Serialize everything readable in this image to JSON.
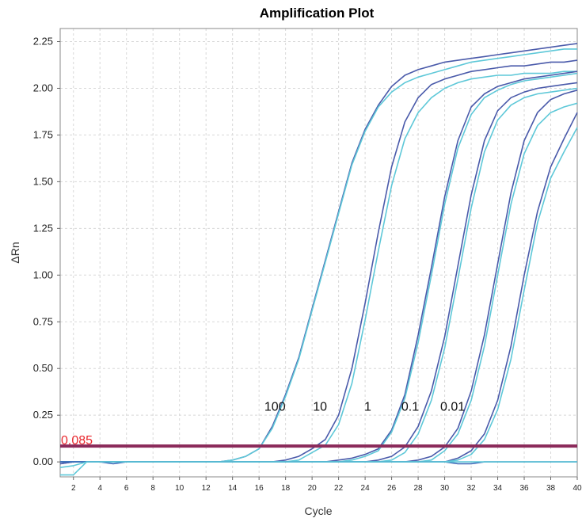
{
  "chart_data": {
    "type": "line",
    "title": "Amplification Plot",
    "xlabel": "Cycle",
    "ylabel": "ΔRn",
    "xlim": [
      1,
      40
    ],
    "ylim": [
      -0.08,
      2.32
    ],
    "xticks": [
      2,
      4,
      6,
      8,
      10,
      12,
      14,
      16,
      18,
      20,
      22,
      24,
      26,
      28,
      30,
      32,
      34,
      36,
      38,
      40
    ],
    "yticks": [
      0.0,
      0.25,
      0.5,
      0.75,
      1.0,
      1.25,
      1.5,
      1.75,
      2.0,
      2.25
    ],
    "ytick_labels": [
      "0.00",
      "0.25",
      "0.50",
      "0.75",
      "1.00",
      "1.25",
      "1.50",
      "1.75",
      "2.00",
      "2.25"
    ],
    "grid": true,
    "threshold": {
      "value": 0.085,
      "label": "0.085",
      "color": "#8b2a5a"
    },
    "colors": {
      "dark": "#4a5aaa",
      "light": "#5ec8d8",
      "baseline": "#3a68b8"
    },
    "annotations": [
      {
        "text": "100",
        "x": 17.2,
        "y": 0.3
      },
      {
        "text": "10",
        "x": 20.6,
        "y": 0.3
      },
      {
        "text": "1",
        "x": 24.2,
        "y": 0.3
      },
      {
        "text": "0.1",
        "x": 27.4,
        "y": 0.3
      },
      {
        "text": "0.01",
        "x": 30.6,
        "y": 0.3
      }
    ],
    "series": [
      {
        "color": "#4a5aaa",
        "values": [
          -0.01,
          0.0,
          0.0,
          0.0,
          0.0,
          0.0,
          0.0,
          0.0,
          0.0,
          0.0,
          0.0,
          0.0,
          0.0,
          0.01,
          0.03,
          0.07,
          0.19,
          0.36,
          0.56,
          0.82,
          1.08,
          1.34,
          1.6,
          1.78,
          1.91,
          2.01,
          2.07,
          2.1,
          2.12,
          2.14,
          2.15,
          2.16,
          2.17,
          2.18,
          2.19,
          2.2,
          2.21,
          2.22,
          2.23,
          2.24
        ]
      },
      {
        "color": "#5ec8d8",
        "values": [
          -0.07,
          -0.07,
          0.0,
          0.0,
          0.0,
          0.0,
          0.0,
          0.0,
          0.0,
          0.0,
          0.0,
          0.0,
          0.0,
          0.01,
          0.03,
          0.07,
          0.18,
          0.35,
          0.55,
          0.81,
          1.07,
          1.33,
          1.59,
          1.77,
          1.9,
          1.98,
          2.03,
          2.06,
          2.08,
          2.1,
          2.12,
          2.14,
          2.15,
          2.16,
          2.17,
          2.18,
          2.19,
          2.2,
          2.21,
          2.21
        ]
      },
      {
        "color": "#4a5aaa",
        "values": [
          -0.01,
          0.0,
          0.0,
          0.0,
          0.0,
          0.0,
          0.0,
          0.0,
          0.0,
          0.0,
          0.0,
          0.0,
          0.0,
          0.0,
          0.0,
          0.0,
          0.0,
          0.01,
          0.03,
          0.07,
          0.12,
          0.25,
          0.5,
          0.85,
          1.23,
          1.58,
          1.82,
          1.95,
          2.02,
          2.05,
          2.07,
          2.09,
          2.1,
          2.11,
          2.12,
          2.12,
          2.13,
          2.14,
          2.14,
          2.15
        ]
      },
      {
        "color": "#5ec8d8",
        "values": [
          0.0,
          0.0,
          0.0,
          0.0,
          0.0,
          0.0,
          0.0,
          0.0,
          0.0,
          0.0,
          0.0,
          0.0,
          0.0,
          0.0,
          0.0,
          0.0,
          0.0,
          0.0,
          0.01,
          0.05,
          0.09,
          0.2,
          0.42,
          0.76,
          1.13,
          1.48,
          1.73,
          1.87,
          1.95,
          2.0,
          2.03,
          2.05,
          2.06,
          2.07,
          2.07,
          2.08,
          2.08,
          2.08,
          2.09,
          2.09
        ]
      },
      {
        "color": "#4a5aaa",
        "values": [
          0.0,
          0.0,
          0.0,
          0.0,
          0.0,
          0.0,
          0.0,
          0.0,
          0.0,
          0.0,
          0.0,
          0.0,
          0.0,
          0.0,
          0.0,
          0.0,
          0.0,
          0.0,
          0.0,
          0.0,
          0.0,
          0.01,
          0.02,
          0.04,
          0.07,
          0.17,
          0.36,
          0.68,
          1.04,
          1.42,
          1.72,
          1.9,
          1.97,
          2.01,
          2.03,
          2.05,
          2.06,
          2.07,
          2.08,
          2.09
        ]
      },
      {
        "color": "#5ec8d8",
        "values": [
          0.0,
          0.0,
          0.0,
          0.0,
          0.0,
          0.0,
          0.0,
          0.0,
          0.0,
          0.0,
          0.0,
          0.0,
          0.0,
          0.0,
          0.0,
          0.0,
          0.0,
          0.0,
          0.0,
          0.0,
          0.0,
          0.0,
          0.01,
          0.03,
          0.06,
          0.16,
          0.34,
          0.64,
          1.0,
          1.38,
          1.68,
          1.86,
          1.95,
          1.99,
          2.02,
          2.04,
          2.05,
          2.06,
          2.07,
          2.08
        ]
      },
      {
        "color": "#4a5aaa",
        "values": [
          0.0,
          0.0,
          0.0,
          0.0,
          0.0,
          0.0,
          0.0,
          0.0,
          0.0,
          0.0,
          0.0,
          0.0,
          0.0,
          0.0,
          0.0,
          0.0,
          0.0,
          0.0,
          0.0,
          0.0,
          0.0,
          0.0,
          0.0,
          0.0,
          0.01,
          0.03,
          0.08,
          0.19,
          0.38,
          0.67,
          1.05,
          1.43,
          1.72,
          1.88,
          1.95,
          1.98,
          2.0,
          2.01,
          2.02,
          2.03
        ]
      },
      {
        "color": "#5ec8d8",
        "values": [
          0.0,
          0.0,
          0.0,
          0.0,
          0.0,
          0.0,
          0.0,
          0.0,
          0.0,
          0.0,
          0.0,
          0.0,
          0.0,
          0.0,
          0.0,
          0.0,
          0.0,
          0.0,
          0.0,
          0.0,
          0.0,
          0.0,
          0.0,
          0.0,
          0.0,
          0.01,
          0.05,
          0.15,
          0.33,
          0.61,
          0.98,
          1.36,
          1.66,
          1.83,
          1.91,
          1.95,
          1.97,
          1.98,
          1.99,
          2.0
        ]
      },
      {
        "color": "#4a5aaa",
        "values": [
          0.0,
          0.0,
          0.0,
          0.0,
          0.0,
          0.0,
          0.0,
          0.0,
          0.0,
          0.0,
          0.0,
          0.0,
          0.0,
          0.0,
          0.0,
          0.0,
          0.0,
          0.0,
          0.0,
          0.0,
          0.0,
          0.0,
          0.0,
          0.0,
          0.0,
          0.0,
          0.0,
          0.01,
          0.03,
          0.08,
          0.18,
          0.38,
          0.68,
          1.06,
          1.44,
          1.72,
          1.87,
          1.94,
          1.97,
          1.99
        ]
      },
      {
        "color": "#5ec8d8",
        "values": [
          0.0,
          0.0,
          0.0,
          0.0,
          0.0,
          0.0,
          0.0,
          0.0,
          0.0,
          0.0,
          0.0,
          0.0,
          0.0,
          0.0,
          0.0,
          0.0,
          0.0,
          0.0,
          0.0,
          0.0,
          0.0,
          0.0,
          0.0,
          0.0,
          0.0,
          0.0,
          0.0,
          0.0,
          0.01,
          0.06,
          0.15,
          0.33,
          0.62,
          1.0,
          1.38,
          1.65,
          1.8,
          1.87,
          1.9,
          1.92
        ]
      },
      {
        "color": "#4a5aaa",
        "values": [
          0.0,
          0.0,
          0.0,
          0.0,
          0.0,
          0.0,
          0.0,
          0.0,
          0.0,
          0.0,
          0.0,
          0.0,
          0.0,
          0.0,
          0.0,
          0.0,
          0.0,
          0.0,
          0.0,
          0.0,
          0.0,
          0.0,
          0.0,
          0.0,
          0.0,
          0.0,
          0.0,
          0.0,
          0.0,
          0.0,
          0.02,
          0.06,
          0.15,
          0.33,
          0.62,
          1.0,
          1.34,
          1.58,
          1.73,
          1.87
        ]
      },
      {
        "color": "#5ec8d8",
        "values": [
          0.0,
          0.0,
          0.0,
          0.0,
          0.0,
          0.0,
          0.0,
          0.0,
          0.0,
          0.0,
          0.0,
          0.0,
          0.0,
          0.0,
          0.0,
          0.0,
          0.0,
          0.0,
          0.0,
          0.0,
          0.0,
          0.0,
          0.0,
          0.0,
          0.0,
          0.0,
          0.0,
          0.0,
          0.0,
          0.0,
          0.01,
          0.04,
          0.12,
          0.28,
          0.55,
          0.92,
          1.28,
          1.52,
          1.66,
          1.79
        ]
      },
      {
        "color": "#3a68b8",
        "values": [
          0.0,
          0.0,
          0.0,
          0.0,
          -0.01,
          0.0,
          0.0,
          0.0,
          0.0,
          0.0,
          0.0,
          0.0,
          0.0,
          0.0,
          0.0,
          0.0,
          0.0,
          0.0,
          0.0,
          0.0,
          0.0,
          0.0,
          0.0,
          0.0,
          0.0,
          0.0,
          0.0,
          0.0,
          0.0,
          0.0,
          -0.01,
          -0.01,
          0.0,
          0.0,
          0.0,
          0.0,
          0.0,
          0.0,
          0.0,
          0.0
        ]
      },
      {
        "color": "#5ec8d8",
        "values": [
          -0.03,
          -0.02,
          0.0,
          0.0,
          0.0,
          0.0,
          0.0,
          0.0,
          0.0,
          0.0,
          0.0,
          0.0,
          0.0,
          0.0,
          0.0,
          0.0,
          0.0,
          0.0,
          0.0,
          0.0,
          0.0,
          0.0,
          0.0,
          0.0,
          0.0,
          0.0,
          0.0,
          0.0,
          0.0,
          0.0,
          0.0,
          0.0,
          0.0,
          0.0,
          0.0,
          0.0,
          0.0,
          0.0,
          0.0,
          0.0
        ]
      }
    ]
  }
}
